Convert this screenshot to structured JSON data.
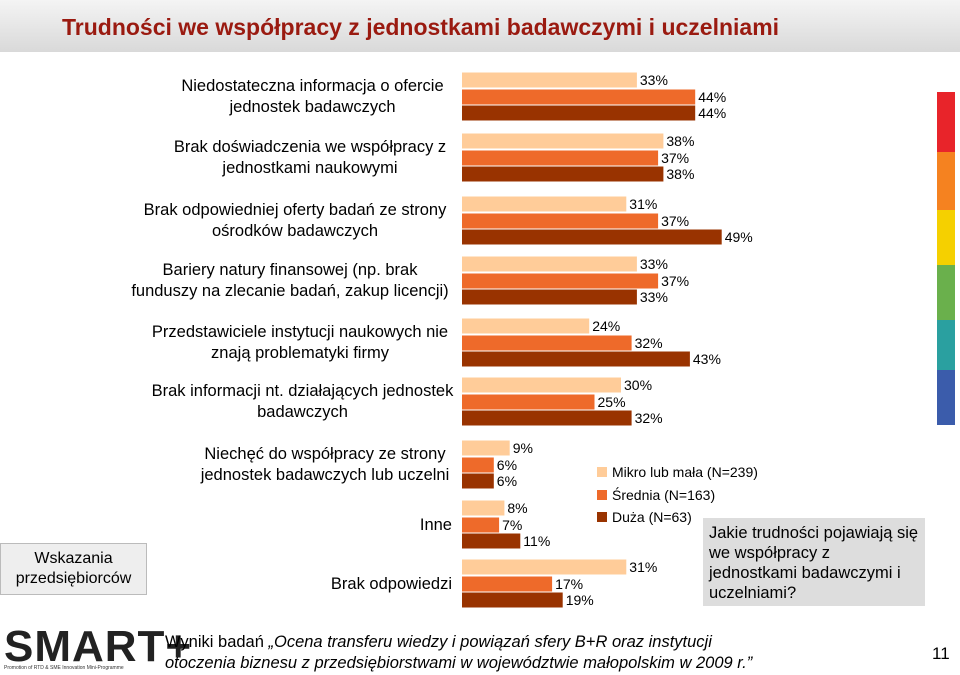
{
  "header": {
    "title": "Trudności we współpracy z jednostkami badawczymi i uczelniami"
  },
  "chart_data": {
    "type": "bar",
    "orientation": "horizontal",
    "legend": "right",
    "categories": [
      "Niedostateczna informacja o ofercie jednostek badawczych",
      "Brak doświadczenia we współpracy z jednostkami naukowymi",
      "Brak odpowiedniej oferty badań ze strony ośrodków badawczych",
      "Bariery natury finansowej (np. brak funduszy na zlecanie badań, zakup licencji)",
      "Przedstawiciele instytucji naukowych nie znają problematyki firmy",
      "Brak informacji nt. działających jednostek badawczych",
      "Niechęć do współpracy ze strony jednostek badawczych lub uczelni",
      "Inne",
      "Brak odpowiedzi"
    ],
    "series": [
      {
        "name": "Mikro lub mała (N=239)",
        "color": "#ffcc99",
        "values": [
          33,
          38,
          31,
          33,
          24,
          30,
          9,
          8,
          31
        ],
        "value_labels": [
          "33%",
          "38%",
          "31%",
          "33%",
          "24%",
          "30%",
          "9%",
          "8%",
          "31%"
        ]
      },
      {
        "name": "Średnia (N=163)",
        "color": "#ee6a2a",
        "values": [
          44,
          37,
          37,
          37,
          32,
          25,
          6,
          7,
          17
        ],
        "value_labels": [
          "44%",
          "37%",
          "37%",
          "37%",
          "32%",
          "25%",
          "6%",
          "7%",
          "17%"
        ]
      },
      {
        "name": "Duża (N=63)",
        "color": "#993300",
        "values": [
          44,
          38,
          49,
          33,
          43,
          32,
          6,
          11,
          19
        ],
        "value_labels": [
          "44%",
          "38%",
          "49%",
          "33%",
          "43%",
          "32%",
          "6%",
          "11%",
          "19%"
        ]
      }
    ]
  },
  "side_note": "Wskazania przedsiębiorców",
  "callout": "Jakie trudności pojawiają się we współpracy z jednostkami badawczymi i uczelniami?",
  "footer": {
    "logo": "SMART+",
    "logo_subtitle": "Promotion of RTD & SME Innovation Mini-Programme",
    "intro": "Wyniki badań",
    "quote_line1": "„Ocena transferu wiedzy i powiązań sfery B+R oraz instytucji",
    "quote_line2": "otoczenia biznesu z przedsiębiorstwami w województwie małopolskim w 2009 r.”",
    "page_number": "11"
  }
}
